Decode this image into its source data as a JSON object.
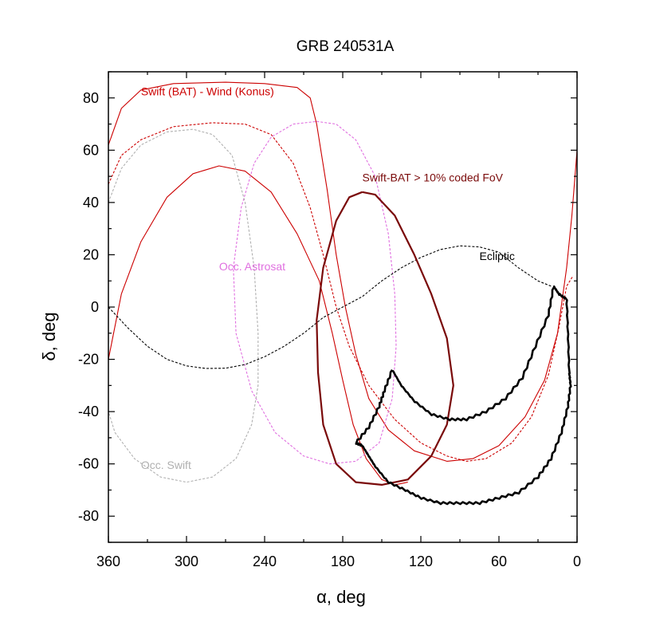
{
  "chart_data": {
    "type": "line",
    "title": "GRB 240531A",
    "xlabel": "α, deg",
    "ylabel": "δ, deg",
    "xlim": [
      360,
      0
    ],
    "ylim": [
      -90,
      90
    ],
    "xticks": [
      360,
      300,
      240,
      180,
      120,
      60,
      0
    ],
    "yticks": [
      80,
      60,
      40,
      20,
      0,
      -20,
      -40,
      -60,
      -80
    ],
    "colors": {
      "triangulation": "#cc0000",
      "triangulation_dashed": "#cc0000",
      "astrosat": "#e070e0",
      "swift_occ": "#b0b0b0",
      "ecliptic": "#000000",
      "bat_fov": "#7a0a0a",
      "localization": "#000000"
    },
    "annotations": [
      {
        "text": "Swift (BAT) - Wind (Konus)",
        "x": 335,
        "y": 81,
        "color": "#cc0000"
      },
      {
        "text": "Swift-BAT > 10% coded FoV",
        "x": 165,
        "y": 48,
        "color": "#7a0a0a"
      },
      {
        "text": "Ecliptic",
        "x": 75,
        "y": 18,
        "color": "#000000"
      },
      {
        "text": "Occ. Astrosat",
        "x": 275,
        "y": 14,
        "color": "#e070e0"
      },
      {
        "text": "Occ. Swift",
        "x": 335,
        "y": -62,
        "color": "#b0b0b0"
      }
    ],
    "series": [
      {
        "name": "Swift (BAT) - Wind (Konus) outer arc",
        "style": "solid",
        "color_key": "triangulation",
        "points": [
          [
            360,
            62
          ],
          [
            350,
            76
          ],
          [
            335,
            83
          ],
          [
            310,
            85.5
          ],
          [
            270,
            86
          ],
          [
            240,
            85.5
          ],
          [
            215,
            84
          ],
          [
            205,
            80
          ],
          [
            200,
            70
          ],
          [
            192,
            45
          ],
          [
            185,
            20
          ],
          [
            178,
            0
          ],
          [
            170,
            -18
          ],
          [
            160,
            -35
          ],
          [
            145,
            -47
          ],
          [
            125,
            -55
          ],
          [
            100,
            -59
          ],
          [
            80,
            -58
          ],
          [
            60,
            -53
          ],
          [
            40,
            -42
          ],
          [
            25,
            -28
          ],
          [
            15,
            -10
          ],
          [
            8,
            15
          ],
          [
            4,
            35
          ],
          [
            0,
            60
          ]
        ]
      },
      {
        "name": "Swift (BAT) - Wind (Konus) dashed",
        "style": "dashed",
        "color_key": "triangulation_dashed",
        "points": [
          [
            360,
            47
          ],
          [
            350,
            58
          ],
          [
            335,
            64
          ],
          [
            310,
            69
          ],
          [
            280,
            70.5
          ],
          [
            255,
            70
          ],
          [
            235,
            66
          ],
          [
            218,
            55
          ],
          [
            205,
            38
          ],
          [
            195,
            20
          ],
          [
            185,
            0
          ],
          [
            175,
            -15
          ],
          [
            160,
            -30
          ],
          [
            140,
            -43
          ],
          [
            120,
            -52
          ],
          [
            100,
            -57
          ],
          [
            85,
            -59
          ],
          [
            70,
            -58
          ],
          [
            50,
            -52
          ],
          [
            35,
            -42
          ],
          [
            22,
            -26
          ],
          [
            14,
            -8
          ],
          [
            8,
            8
          ],
          [
            3,
            12
          ]
        ]
      },
      {
        "name": "Swift (BAT) - Wind (Konus) inner arc",
        "style": "solid",
        "color_key": "triangulation",
        "points": [
          [
            360,
            -20
          ],
          [
            350,
            5
          ],
          [
            335,
            25
          ],
          [
            315,
            42
          ],
          [
            295,
            51
          ],
          [
            275,
            54
          ],
          [
            255,
            52
          ],
          [
            235,
            44
          ],
          [
            215,
            28
          ],
          [
            198,
            10
          ],
          [
            188,
            -10
          ],
          [
            180,
            -28
          ],
          [
            172,
            -45
          ],
          [
            162,
            -58
          ],
          [
            150,
            -66
          ],
          [
            140,
            -68
          ],
          [
            130,
            -67
          ]
        ]
      },
      {
        "name": "Occ. Astrosat",
        "style": "dashed",
        "color_key": "astrosat",
        "points": [
          [
            200,
            71
          ],
          [
            185,
            70
          ],
          [
            170,
            64
          ],
          [
            155,
            50
          ],
          [
            145,
            28
          ],
          [
            140,
            5
          ],
          [
            139,
            -15
          ],
          [
            142,
            -35
          ],
          [
            152,
            -52
          ],
          [
            170,
            -59
          ],
          [
            190,
            -60
          ],
          [
            210,
            -57
          ],
          [
            232,
            -48
          ],
          [
            250,
            -32
          ],
          [
            262,
            -10
          ],
          [
            264,
            15
          ],
          [
            258,
            38
          ],
          [
            248,
            55
          ],
          [
            235,
            65
          ],
          [
            218,
            70
          ],
          [
            200,
            71
          ]
        ]
      },
      {
        "name": "Occ. Swift",
        "style": "dashed",
        "color_key": "swift_occ",
        "points": [
          [
            360,
            40
          ],
          [
            350,
            53
          ],
          [
            335,
            62
          ],
          [
            315,
            67
          ],
          [
            295,
            68
          ],
          [
            280,
            66
          ],
          [
            265,
            58
          ],
          [
            255,
            40
          ],
          [
            248,
            15
          ],
          [
            245,
            -10
          ],
          [
            245,
            -30
          ],
          [
            250,
            -45
          ],
          [
            262,
            -58
          ],
          [
            280,
            -65
          ],
          [
            300,
            -67
          ],
          [
            320,
            -65
          ],
          [
            340,
            -58
          ],
          [
            355,
            -48
          ],
          [
            360,
            -40
          ]
        ]
      },
      {
        "name": "Ecliptic",
        "style": "dashed",
        "color_key": "ecliptic",
        "points": [
          [
            360,
            0
          ],
          [
            345,
            -8
          ],
          [
            330,
            -15
          ],
          [
            315,
            -20
          ],
          [
            300,
            -22.5
          ],
          [
            285,
            -23.5
          ],
          [
            270,
            -23.4
          ],
          [
            255,
            -22
          ],
          [
            240,
            -19
          ],
          [
            225,
            -15
          ],
          [
            210,
            -10
          ],
          [
            195,
            -4
          ],
          [
            180,
            0
          ],
          [
            165,
            4
          ],
          [
            150,
            10
          ],
          [
            135,
            15
          ],
          [
            120,
            19
          ],
          [
            105,
            22
          ],
          [
            90,
            23.4
          ],
          [
            75,
            23
          ],
          [
            60,
            21
          ],
          [
            45,
            15
          ],
          [
            30,
            10
          ],
          [
            20,
            8
          ]
        ]
      },
      {
        "name": "Swift-BAT > 10% coded FoV",
        "style": "solid",
        "color_key": "bat_fov",
        "points": [
          [
            165,
            44
          ],
          [
            175,
            42
          ],
          [
            185,
            33
          ],
          [
            195,
            15
          ],
          [
            200,
            -5
          ],
          [
            199,
            -25
          ],
          [
            195,
            -45
          ],
          [
            185,
            -60
          ],
          [
            170,
            -67
          ],
          [
            150,
            -68
          ],
          [
            130,
            -66
          ],
          [
            112,
            -57
          ],
          [
            100,
            -45
          ],
          [
            95,
            -30
          ],
          [
            100,
            -12
          ],
          [
            112,
            5
          ],
          [
            125,
            20
          ],
          [
            140,
            35
          ],
          [
            155,
            43
          ],
          [
            165,
            44
          ]
        ]
      },
      {
        "name": "Localization region",
        "style": "solid-jagged",
        "color_key": "localization",
        "points": [
          [
            142,
            -24
          ],
          [
            135,
            -30
          ],
          [
            125,
            -36
          ],
          [
            112,
            -41
          ],
          [
            98,
            -43
          ],
          [
            85,
            -43
          ],
          [
            70,
            -40
          ],
          [
            55,
            -35
          ],
          [
            42,
            -27
          ],
          [
            32,
            -15
          ],
          [
            22,
            -3
          ],
          [
            18,
            8
          ],
          [
            14,
            5
          ],
          [
            8,
            3
          ],
          [
            7,
            -10
          ],
          [
            6,
            -25
          ],
          [
            5,
            -30
          ],
          [
            7,
            -38
          ],
          [
            12,
            -48
          ],
          [
            20,
            -58
          ],
          [
            30,
            -65
          ],
          [
            45,
            -71
          ],
          [
            60,
            -73
          ],
          [
            75,
            -75
          ],
          [
            90,
            -75
          ],
          [
            105,
            -75
          ],
          [
            120,
            -73
          ],
          [
            132,
            -70
          ],
          [
            145,
            -67
          ],
          [
            155,
            -61
          ],
          [
            160,
            -57
          ],
          [
            165,
            -53
          ],
          [
            170,
            -52
          ],
          [
            160,
            -46
          ],
          [
            152,
            -38
          ],
          [
            148,
            -32
          ],
          [
            142,
            -24
          ]
        ]
      }
    ]
  }
}
